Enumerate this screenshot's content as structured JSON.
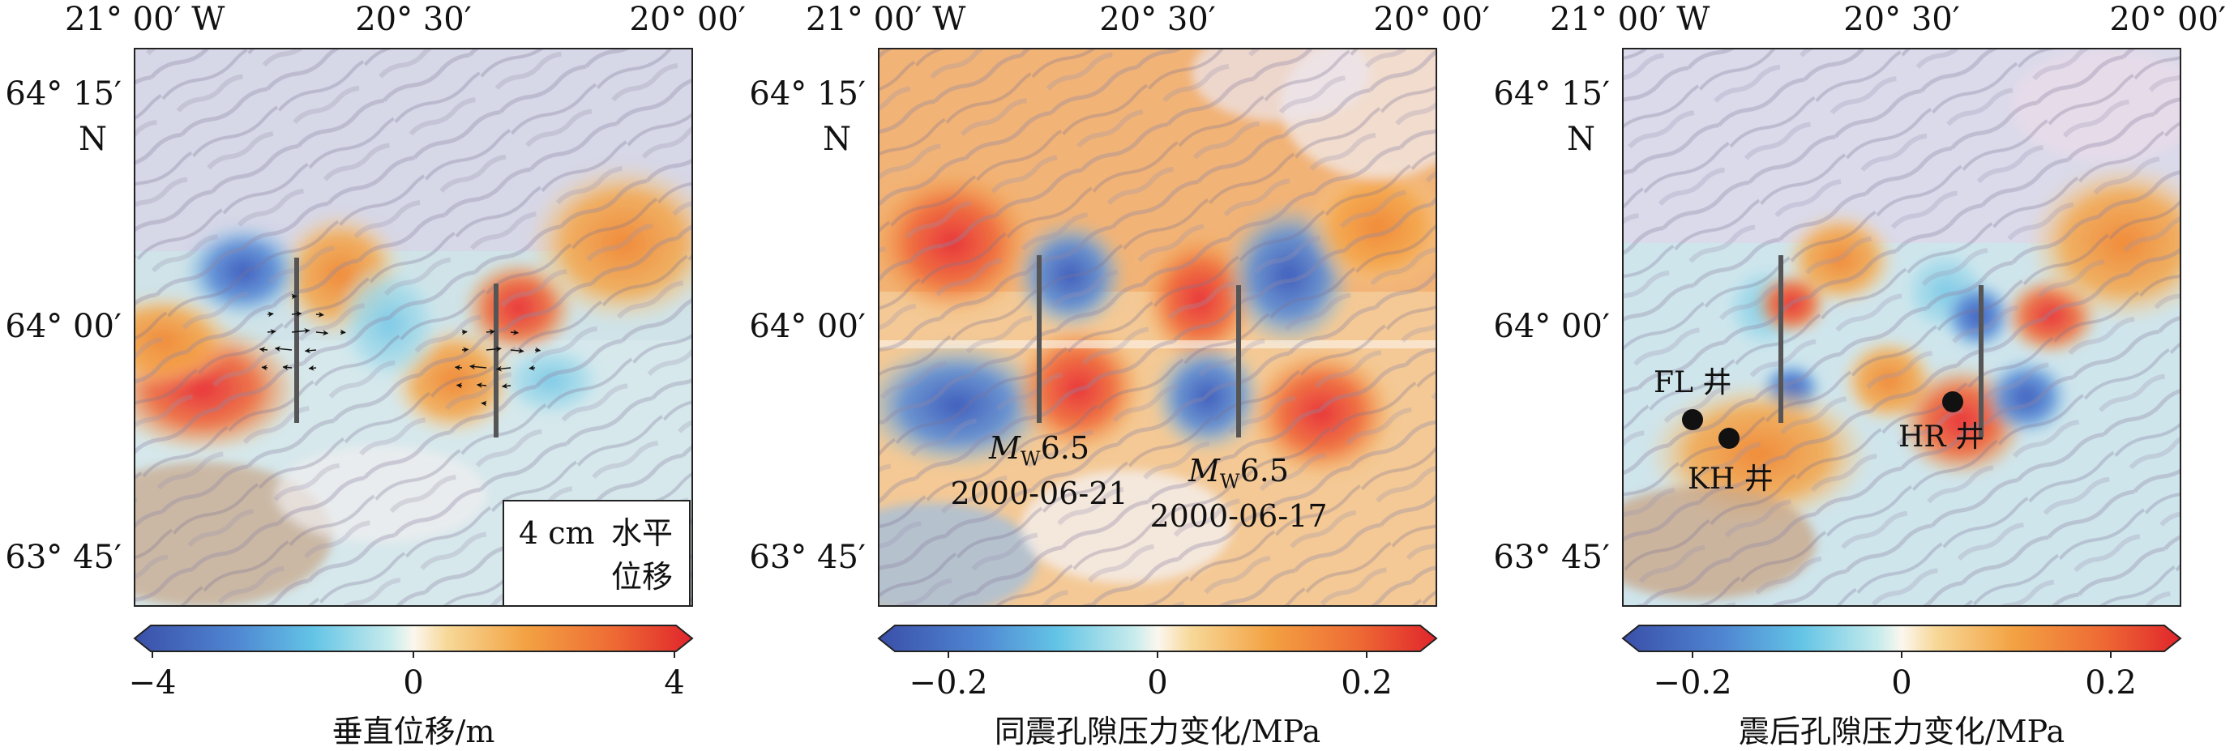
{
  "panels": [
    {
      "id": "vertical",
      "top_labels": [
        "21° 00′ W",
        "20° 30′",
        "20° 00′"
      ],
      "left_labels": [
        "64° 15′",
        "N",
        "64° 00′",
        "63° 45′"
      ],
      "colorbar": {
        "min_label": "−4",
        "mid_label": "0",
        "max_label": "4",
        "title": "垂直位移/m"
      },
      "legend": {
        "scale": "4 cm",
        "label_line1": "水平",
        "label_line2": "位移"
      }
    },
    {
      "id": "coseismic",
      "top_labels": [
        "21° 00′ W",
        "20° 30′",
        "20° 00′"
      ],
      "left_labels": [
        "64° 15′",
        "N",
        "64° 00′",
        "63° 45′"
      ],
      "colorbar": {
        "min_label": "−0.2",
        "mid_label": "0",
        "max_label": "0.2",
        "title": "同震孔隙压力变化/MPa"
      },
      "events": [
        {
          "mag_prefix": "M",
          "mag_sub": "W",
          "mag_value": "6.5",
          "date": "2000-06-21"
        },
        {
          "mag_prefix": "M",
          "mag_sub": "W",
          "mag_value": "6.5",
          "date": "2000-06-17"
        }
      ]
    },
    {
      "id": "postseismic",
      "top_labels": [
        "21° 00′ W",
        "20° 30′",
        "20° 00′"
      ],
      "left_labels": [
        "64° 15′",
        "N",
        "64° 00′",
        "63° 45′"
      ],
      "colorbar": {
        "min_label": "−0.2",
        "mid_label": "0",
        "max_label": "0.2",
        "title": "震后孔隙压力变化/MPa"
      },
      "wells": [
        "FL 井",
        "KH 井",
        "HR 井"
      ]
    }
  ],
  "colors": {
    "deep_blue": "#3a55b0",
    "blue": "#5b8fd6",
    "cyan": "#62c6e8",
    "pale_cyan": "#bfe6ea",
    "white": "#f4f1f4",
    "pale_orange": "#f8dca6",
    "orange": "#f4a03e",
    "red": "#e8413c",
    "land": "#dcd6e6",
    "sea_tint": "#c9b9a3"
  }
}
